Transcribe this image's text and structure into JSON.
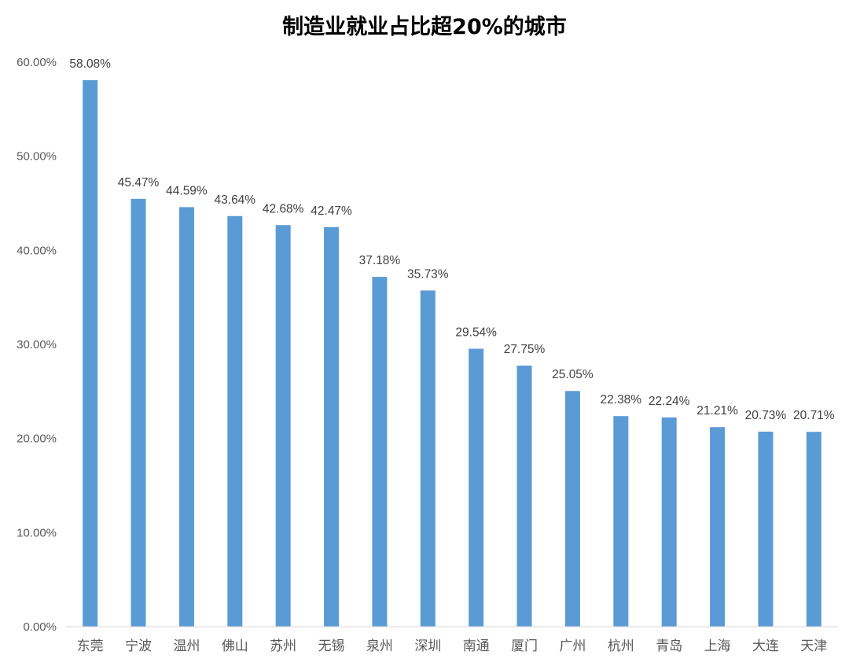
{
  "chart_data": {
    "type": "bar",
    "title": "制造业就业占比超20%的城市",
    "xlabel": "",
    "ylabel": "",
    "categories": [
      "东莞",
      "宁波",
      "温州",
      "佛山",
      "苏州",
      "无锡",
      "泉州",
      "深圳",
      "南通",
      "厦门",
      "广州",
      "杭州",
      "青岛",
      "上海",
      "大连",
      "天津"
    ],
    "values": [
      58.08,
      45.47,
      44.59,
      43.64,
      42.68,
      42.47,
      37.18,
      35.73,
      29.54,
      27.75,
      25.05,
      22.38,
      22.24,
      21.21,
      20.73,
      20.71
    ],
    "data_labels": [
      "58.08%",
      "45.47%",
      "44.59%",
      "43.64%",
      "42.68%",
      "42.47%",
      "37.18%",
      "35.73%",
      "29.54%",
      "27.75%",
      "25.05%",
      "22.38%",
      "22.24%",
      "21.21%",
      "20.73%",
      "20.71%"
    ],
    "ylim": [
      0,
      60
    ],
    "yticks": [
      0,
      10,
      20,
      30,
      40,
      50,
      60
    ],
    "ytick_labels": [
      "0.00%",
      "10.00%",
      "20.00%",
      "30.00%",
      "40.00%",
      "50.00%",
      "60.00%"
    ],
    "grid": false,
    "legend": "none",
    "colors": {
      "bar": "#5B9BD5",
      "axis": "#D9D9D9",
      "text": "#595959"
    }
  }
}
